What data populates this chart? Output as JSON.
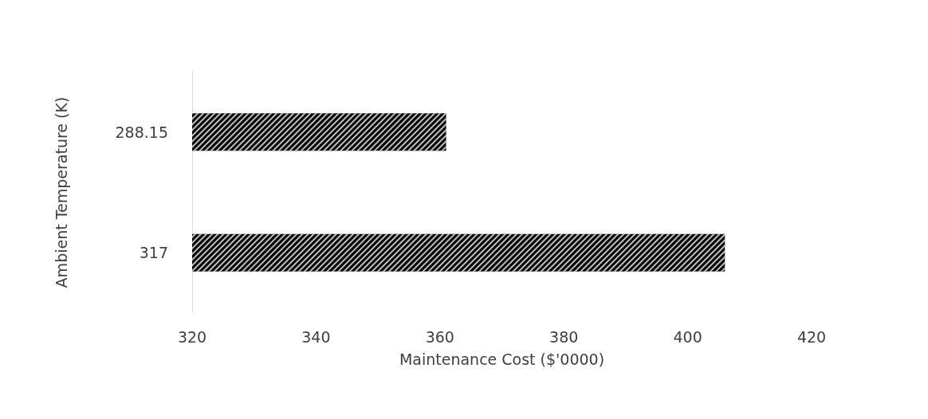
{
  "chart_data": {
    "type": "bar",
    "orientation": "horizontal",
    "categories": [
      "288.15",
      "317"
    ],
    "values": [
      361,
      406
    ],
    "color": "#000000",
    "xlabel": "Maintenance Cost ($'0000)",
    "ylabel": "Ambient Temperature (K)",
    "xlim": [
      320,
      420
    ],
    "xticks": [
      320,
      340,
      360,
      380,
      400,
      420
    ],
    "grid": false
  }
}
